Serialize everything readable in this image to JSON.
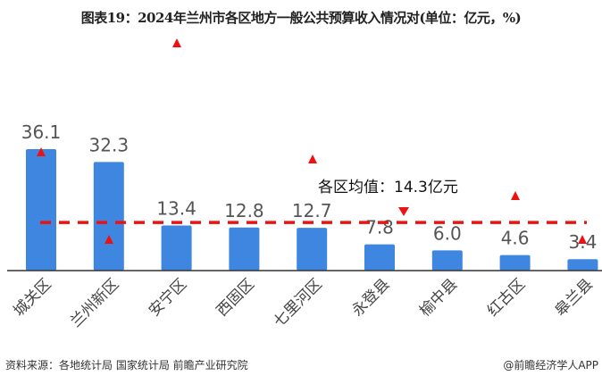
{
  "title": "图表19：2024年兰州市各区地方一般公共预算收入情况对(单位：亿元，%)",
  "chart_data": {
    "type": "bar",
    "categories": [
      "城关区",
      "兰州新区",
      "安宁区",
      "西固区",
      "七里河区",
      "永登县",
      "榆中县",
      "红古区",
      "皋兰县"
    ],
    "values": [
      36.1,
      32.3,
      13.4,
      12.8,
      12.7,
      7.8,
      6.0,
      4.6,
      3.4
    ],
    "value_labels": [
      "36.1",
      "32.3",
      "13.4",
      "12.8",
      "12.7",
      "7.8",
      "6.0",
      "4.6",
      "3.4"
    ],
    "bar_color": "#3f86e0",
    "average": {
      "value": 14.3,
      "label": "各区均值：14.3亿元",
      "color": "#ee1111",
      "style": "dashed"
    },
    "growth_markers": {
      "color": "#ee1111",
      "directions": [
        "up",
        "up",
        "up",
        null,
        "up",
        "down",
        null,
        "up",
        "up"
      ]
    },
    "xlabel": "",
    "ylabel": "",
    "ylim": [
      0,
      40
    ],
    "grid": false,
    "legend": "none"
  },
  "source": "资料来源：各地统计局 国家统计局 前瞻产业研究院",
  "brand": "@前瞻经济学人APP",
  "watermark": "前瞻产业研究院"
}
